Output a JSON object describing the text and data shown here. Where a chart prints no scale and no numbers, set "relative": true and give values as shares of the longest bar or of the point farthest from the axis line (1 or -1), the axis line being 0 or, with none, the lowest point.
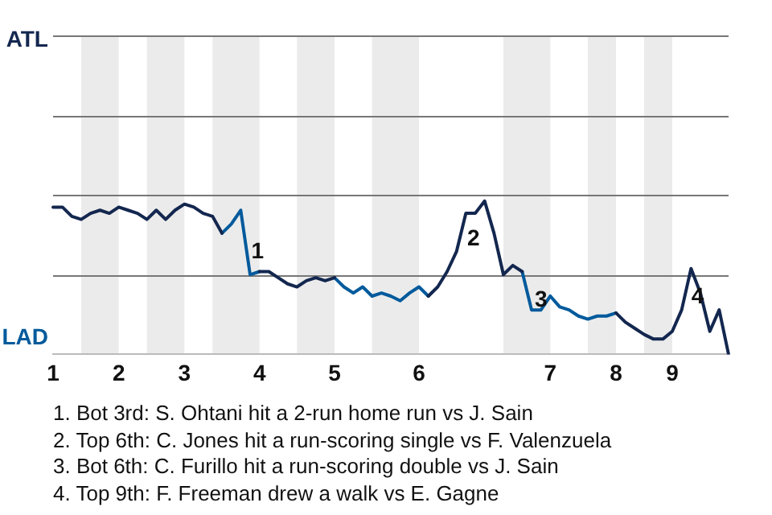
{
  "chart_data": {
    "type": "line",
    "relative": true,
    "categories": [
      "1",
      null,
      null,
      null,
      null,
      null,
      null,
      "2",
      null,
      null,
      null,
      null,
      null,
      null,
      "3",
      null,
      null,
      null,
      null,
      null,
      null,
      null,
      "4",
      null,
      null,
      null,
      null,
      null,
      null,
      null,
      "5",
      null,
      null,
      null,
      null,
      null,
      null,
      null,
      null,
      "6",
      null,
      null,
      null,
      null,
      null,
      null,
      null,
      null,
      null,
      null,
      null,
      null,
      null,
      "7",
      null,
      null,
      null,
      null,
      null,
      null,
      "8",
      null,
      null,
      null,
      null,
      null,
      "9",
      null,
      null,
      null,
      null,
      null,
      null
    ],
    "series": [
      {
        "color": "#13274f",
        "values": [
          0.96,
          0.96,
          0.9,
          0.88,
          0.92,
          0.94,
          0.92,
          0.96,
          0.94,
          0.92,
          0.88,
          0.94,
          0.88,
          0.94,
          0.98,
          0.96,
          0.92,
          0.9,
          0.79,
          null,
          null,
          null,
          0.54,
          0.54,
          0.5,
          0.46,
          0.44,
          0.48,
          0.5,
          0.48,
          0.5,
          null,
          null,
          null,
          null,
          null,
          null,
          null,
          null,
          null,
          0.38,
          0.44,
          0.54,
          0.67,
          0.92,
          0.92,
          1,
          0.79,
          0.52,
          0.58,
          0.54,
          null,
          null,
          null,
          null,
          null,
          null,
          null,
          null,
          null,
          0.27,
          0.21,
          0.17,
          0.13,
          0.1,
          0.1,
          0.15,
          0.29,
          0.56,
          0.4,
          0.15,
          0.29,
          0
        ]
      },
      {
        "color": "#005a9c",
        "values": [
          null,
          null,
          null,
          null,
          null,
          null,
          null,
          null,
          null,
          null,
          null,
          null,
          null,
          null,
          null,
          null,
          null,
          null,
          0.79,
          0.85,
          0.94,
          0.52,
          0.54,
          null,
          null,
          null,
          null,
          null,
          null,
          null,
          0.5,
          0.44,
          0.4,
          0.44,
          0.38,
          0.4,
          0.38,
          0.35,
          0.4,
          0.44,
          0.38,
          null,
          null,
          null,
          null,
          null,
          null,
          null,
          null,
          null,
          0.54,
          0.29,
          0.29,
          0.38,
          0.31,
          0.29,
          0.25,
          0.23,
          0.25,
          0.25,
          0.27,
          null,
          null,
          null,
          null,
          null,
          null,
          null,
          null,
          null,
          null,
          null,
          null
        ]
      }
    ],
    "ref_lines": [
      {
        "axis": "y",
        "value": 0.52,
        "color": "#777777"
      },
      {
        "axis": "y",
        "value": 1.04,
        "color": "#777777"
      },
      {
        "axis": "y",
        "value": 1.56,
        "color": "#777777"
      },
      {
        "axis": "y",
        "value": 2.08,
        "color": "#777777"
      }
    ],
    "marker": "none",
    "line_style": "solid",
    "annotations": [
      "ATL",
      "LAD",
      "1",
      "2",
      "3",
      "4",
      "1. Bot 3rd: S. Ohtani hit a 2-run home run vs J. Sain",
      "2. Top 6th: C. Jones hit a run-scoring single vs F. Valenzuela",
      "3. Bot 6th: C. Furillo hit a run-scoring double vs J. Sain",
      "4. Top 9th: F. Freeman drew a walk vs E. Gagne"
    ]
  }
}
